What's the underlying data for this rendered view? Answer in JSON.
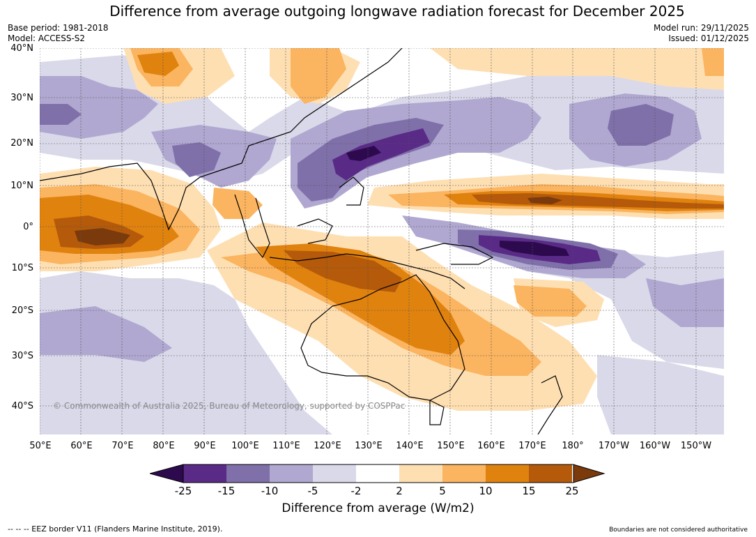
{
  "title": "Difference from average outgoing longwave radiation forecast for December 2025",
  "base_period": "Base period: 1981-2018",
  "model": "Model: ACCESS-S2",
  "model_run": "Model run: 29/11/2025",
  "issued": "Issued: 01/12/2025",
  "lat_labels": [
    "40°N",
    "30°N",
    "20°N",
    "10°N",
    "0°",
    "10°S",
    "20°S",
    "30°S",
    "40°S"
  ],
  "lon_labels": [
    "50°E",
    "60°E",
    "70°E",
    "80°E",
    "90°E",
    "100°E",
    "110°E",
    "120°E",
    "130°E",
    "140°E",
    "150°E",
    "160°E",
    "170°E",
    "180°",
    "170°W",
    "160°W",
    "150°W"
  ],
  "copyright": "© Commonwealth of Australia 2025, Bureau of Meteorology, supported by COSPPac",
  "colorbar": {
    "title": "Difference from average (W/m2)",
    "ticks": [
      "-25",
      "-15",
      "-10",
      "-5",
      "-2",
      "2",
      "5",
      "10",
      "15",
      "25"
    ],
    "colors": [
      "#2d0a4e",
      "#5a2a87",
      "#7f70aa",
      "#b0a8d0",
      "#d9d9ea",
      "#ffffff",
      "#fedfb2",
      "#fbb45f",
      "#e0820e",
      "#b45a0a",
      "#7a3a0c"
    ]
  },
  "footer_left": "--  --  -- EEZ border V11 (Flanders Marine Institute, 2019).",
  "footer_right": "Boundaries are not considered authoritative"
}
